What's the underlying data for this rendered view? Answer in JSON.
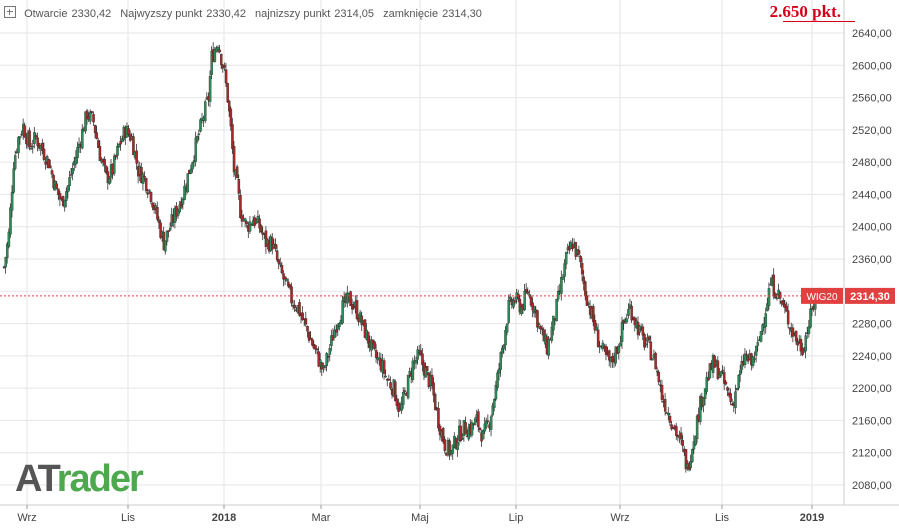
{
  "header": {
    "open_label": "Otwarcie",
    "open_value": "2330,42",
    "high_label": "Najwyzszy punkt",
    "high_value": "2330,42",
    "low_label": "najnizszy punkt",
    "low_value": "2314,05",
    "close_label": "zamknięcie",
    "close_value": "2314,30"
  },
  "annotation": {
    "target": "2.650 pkt."
  },
  "logo": {
    "part1": "AT",
    "part2": "rader"
  },
  "colors": {
    "up": "#2e8b57",
    "down": "#a52a2a",
    "price_tag": "#e04040",
    "grid": "#e6e6e6"
  },
  "chart_data": {
    "type": "candlestick",
    "ylim": [
      2070,
      2660
    ],
    "y_ticks": [
      "2080,00",
      "2120,00",
      "2160,00",
      "2200,00",
      "2240,00",
      "2280,00",
      "2320,00",
      "2360,00",
      "2400,00",
      "2440,00",
      "2480,00",
      "2520,00",
      "2560,00",
      "2600,00",
      "2640,00"
    ],
    "x_labels": [
      "Wrz",
      "Lis",
      "2018",
      "Mar",
      "Maj",
      "Lip",
      "Wrz",
      "Lis",
      "2019"
    ],
    "current": {
      "symbol": "WIG20",
      "value": "2314,30",
      "price": 2314.3
    },
    "path": [
      [
        0,
        2350
      ],
      [
        3,
        2390
      ],
      [
        6,
        2480
      ],
      [
        9,
        2510
      ],
      [
        12,
        2525
      ],
      [
        16,
        2500
      ],
      [
        20,
        2510
      ],
      [
        24,
        2495
      ],
      [
        28,
        2480
      ],
      [
        32,
        2450
      ],
      [
        36,
        2430
      ],
      [
        40,
        2450
      ],
      [
        44,
        2480
      ],
      [
        48,
        2510
      ],
      [
        52,
        2540
      ],
      [
        56,
        2530
      ],
      [
        60,
        2490
      ],
      [
        64,
        2460
      ],
      [
        68,
        2470
      ],
      [
        72,
        2500
      ],
      [
        76,
        2520
      ],
      [
        80,
        2510
      ],
      [
        84,
        2470
      ],
      [
        88,
        2460
      ],
      [
        92,
        2440
      ],
      [
        96,
        2410
      ],
      [
        100,
        2380
      ],
      [
        104,
        2400
      ],
      [
        108,
        2420
      ],
      [
        112,
        2440
      ],
      [
        116,
        2470
      ],
      [
        120,
        2500
      ],
      [
        124,
        2530
      ],
      [
        128,
        2560
      ],
      [
        130,
        2610
      ],
      [
        134,
        2630
      ],
      [
        138,
        2590
      ],
      [
        140,
        2560
      ],
      [
        142,
        2520
      ],
      [
        144,
        2470
      ],
      [
        146,
        2450
      ],
      [
        148,
        2420
      ],
      [
        152,
        2400
      ],
      [
        156,
        2410
      ],
      [
        160,
        2400
      ],
      [
        164,
        2380
      ],
      [
        168,
        2380
      ],
      [
        172,
        2350
      ],
      [
        176,
        2330
      ],
      [
        180,
        2310
      ],
      [
        184,
        2300
      ],
      [
        188,
        2280
      ],
      [
        192,
        2260
      ],
      [
        196,
        2240
      ],
      [
        200,
        2220
      ],
      [
        204,
        2250
      ],
      [
        208,
        2280
      ],
      [
        212,
        2300
      ],
      [
        216,
        2310
      ],
      [
        220,
        2300
      ],
      [
        224,
        2280
      ],
      [
        228,
        2260
      ],
      [
        232,
        2240
      ],
      [
        236,
        2230
      ],
      [
        240,
        2210
      ],
      [
        244,
        2200
      ],
      [
        248,
        2170
      ],
      [
        252,
        2200
      ],
      [
        256,
        2230
      ],
      [
        260,
        2240
      ],
      [
        264,
        2220
      ],
      [
        268,
        2200
      ],
      [
        272,
        2160
      ],
      [
        276,
        2130
      ],
      [
        280,
        2120
      ],
      [
        284,
        2140
      ],
      [
        288,
        2150
      ],
      [
        292,
        2150
      ],
      [
        296,
        2160
      ],
      [
        300,
        2140
      ],
      [
        304,
        2160
      ],
      [
        308,
        2200
      ],
      [
        312,
        2250
      ],
      [
        316,
        2300
      ],
      [
        320,
        2310
      ],
      [
        324,
        2300
      ],
      [
        328,
        2320
      ],
      [
        332,
        2300
      ],
      [
        336,
        2270
      ],
      [
        340,
        2250
      ],
      [
        344,
        2280
      ],
      [
        348,
        2320
      ],
      [
        352,
        2360
      ],
      [
        356,
        2380
      ],
      [
        360,
        2360
      ],
      [
        364,
        2320
      ],
      [
        368,
        2290
      ],
      [
        372,
        2260
      ],
      [
        376,
        2240
      ],
      [
        380,
        2230
      ],
      [
        384,
        2250
      ],
      [
        388,
        2280
      ],
      [
        392,
        2300
      ],
      [
        396,
        2280
      ],
      [
        400,
        2260
      ],
      [
        404,
        2250
      ],
      [
        408,
        2230
      ],
      [
        412,
        2190
      ],
      [
        416,
        2170
      ],
      [
        420,
        2150
      ],
      [
        424,
        2130
      ],
      [
        428,
        2100
      ],
      [
        432,
        2140
      ],
      [
        436,
        2180
      ],
      [
        440,
        2210
      ],
      [
        444,
        2230
      ],
      [
        448,
        2220
      ],
      [
        452,
        2200
      ],
      [
        456,
        2180
      ],
      [
        460,
        2210
      ],
      [
        464,
        2240
      ],
      [
        468,
        2230
      ],
      [
        472,
        2250
      ],
      [
        476,
        2290
      ],
      [
        480,
        2330
      ],
      [
        484,
        2320
      ],
      [
        488,
        2300
      ],
      [
        492,
        2280
      ],
      [
        496,
        2260
      ],
      [
        500,
        2250
      ],
      [
        504,
        2280
      ],
      [
        508,
        2310
      ],
      [
        511,
        2320
      ]
    ]
  }
}
